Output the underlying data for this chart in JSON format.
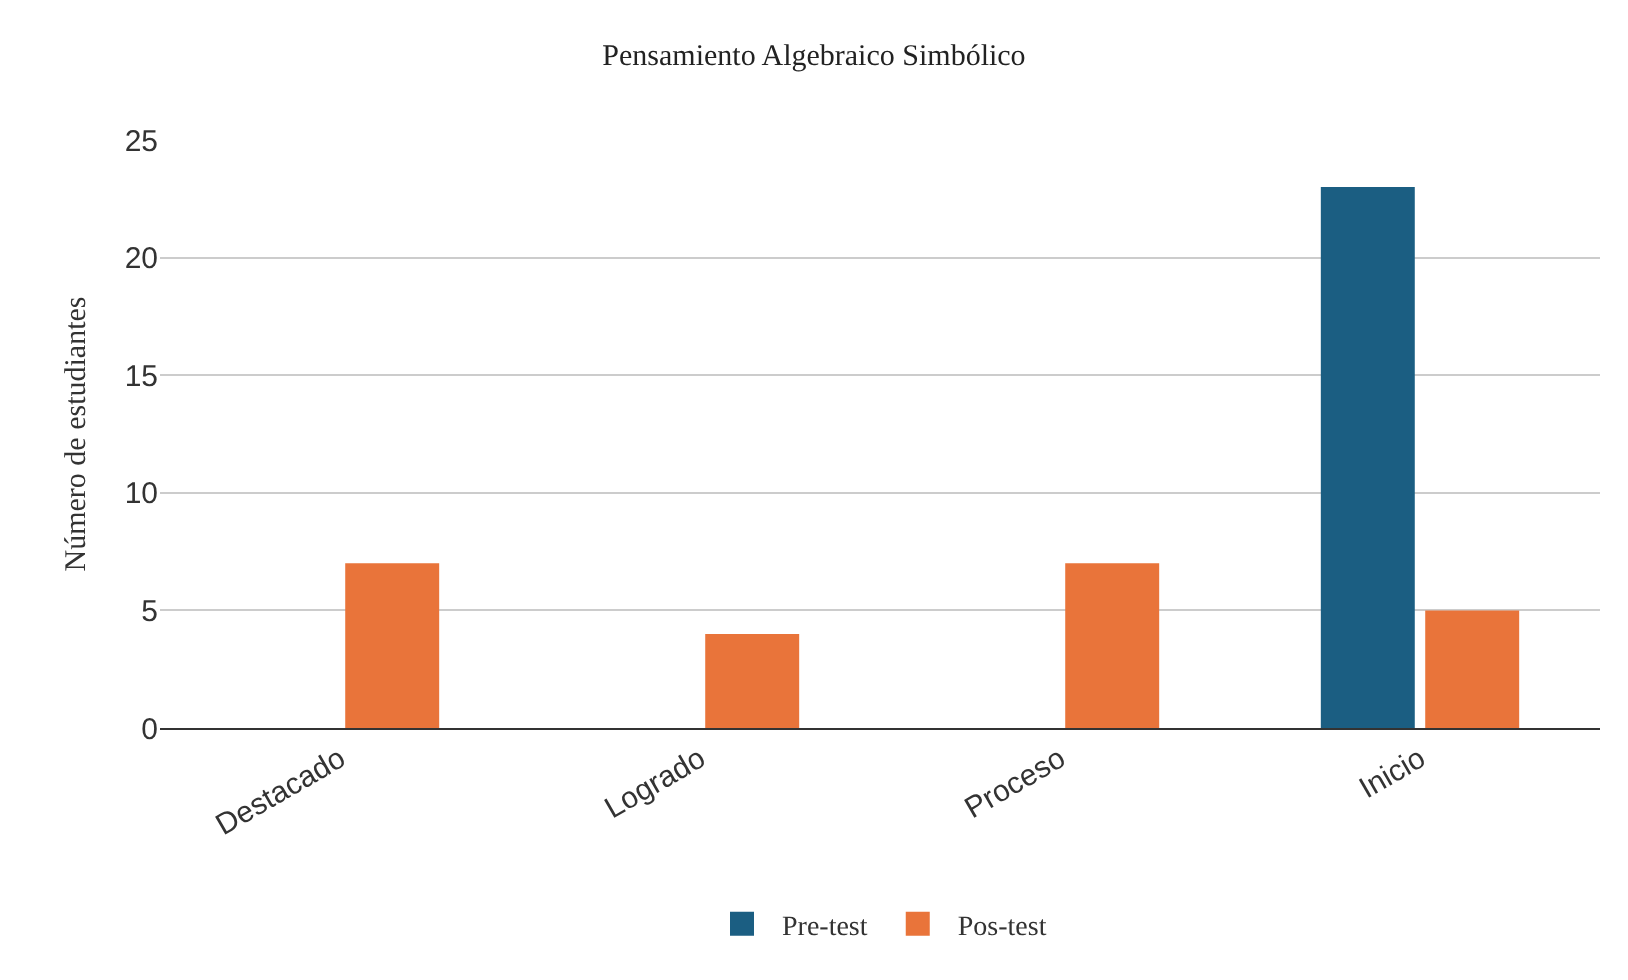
{
  "chart_data": {
    "type": "bar",
    "title": "Pensamiento Algebraico Simbólico",
    "ylabel": "Número de estudiantes",
    "categories": [
      "Destacado",
      "Logrado",
      "Proceso",
      "Inicio"
    ],
    "series": [
      {
        "name": "Pre-test",
        "color": "#1b5e82",
        "values": [
          0,
          0,
          0,
          23
        ]
      },
      {
        "name": "Pos-test",
        "color": "#e9743a",
        "values": [
          7,
          4,
          7,
          5
        ]
      }
    ],
    "ylim": [
      0,
      25
    ],
    "yticks": [
      0,
      5,
      10,
      15,
      20,
      25
    ],
    "grid": "y",
    "legend": "bottom"
  }
}
